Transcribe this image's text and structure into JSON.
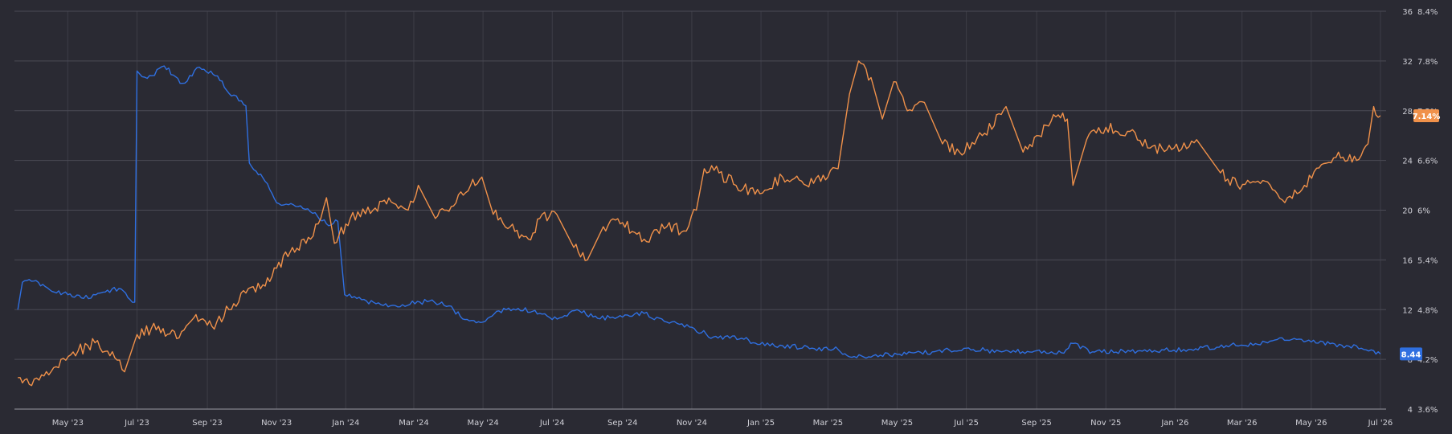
{
  "chart_data": {
    "type": "line",
    "grid": true,
    "legend": "none",
    "x_range": [
      "2023-03-15",
      "2026-07-06"
    ],
    "x_ticks": [
      {
        "label": "May '23",
        "date": "2023-05-01"
      },
      {
        "label": "Jul '23",
        "date": "2023-07-01"
      },
      {
        "label": "Sep '23",
        "date": "2023-09-01"
      },
      {
        "label": "Nov '23",
        "date": "2023-11-01"
      },
      {
        "label": "Jan '24",
        "date": "2024-01-01"
      },
      {
        "label": "Mar '24",
        "date": "2024-03-01"
      },
      {
        "label": "May '24",
        "date": "2024-05-01"
      },
      {
        "label": "Jul '24",
        "date": "2024-07-01"
      },
      {
        "label": "Sep '24",
        "date": "2024-09-01"
      },
      {
        "label": "Nov '24",
        "date": "2024-11-01"
      },
      {
        "label": "Jan '25",
        "date": "2025-01-01"
      },
      {
        "label": "Mar '25",
        "date": "2025-03-01"
      },
      {
        "label": "May '25",
        "date": "2025-05-01"
      },
      {
        "label": "Jul '25",
        "date": "2025-07-01"
      },
      {
        "label": "Sep '25",
        "date": "2025-09-01"
      },
      {
        "label": "Nov '25",
        "date": "2025-11-01"
      },
      {
        "label": "Jan '26",
        "date": "2026-01-01"
      },
      {
        "label": "Mar '26",
        "date": "2026-03-01"
      },
      {
        "label": "May '26",
        "date": "2026-05-01"
      },
      {
        "label": "Jul '26",
        "date": "2026-07-01"
      }
    ],
    "y_left": {
      "range": [
        4,
        36
      ],
      "ticks": [
        {
          "value": 4,
          "label": "4"
        },
        {
          "value": 8,
          "label": "8"
        },
        {
          "value": 12,
          "label": "12"
        },
        {
          "value": 16,
          "label": "16"
        },
        {
          "value": 20,
          "label": "20"
        },
        {
          "value": 24,
          "label": "24"
        },
        {
          "value": 28,
          "label": "28"
        },
        {
          "value": 32,
          "label": "32"
        },
        {
          "value": 36,
          "label": "36"
        }
      ]
    },
    "y_right": {
      "range": [
        3.6,
        8.4
      ],
      "ticks": [
        {
          "value": 3.6,
          "label": "3.6%"
        },
        {
          "value": 4.2,
          "label": "4.2%"
        },
        {
          "value": 4.8,
          "label": "4.8%"
        },
        {
          "value": 5.4,
          "label": "5.4%"
        },
        {
          "value": 6.0,
          "label": "6%"
        },
        {
          "value": 6.6,
          "label": "6.6%"
        },
        {
          "value": 7.2,
          "label": "7.2%"
        },
        {
          "value": 7.8,
          "label": "7.8%"
        },
        {
          "value": 8.4,
          "label": "8.4%"
        }
      ]
    },
    "series": [
      {
        "axis": "left",
        "color": "#2f6fe0",
        "last_label": "8.44",
        "points": [
          [
            "2023-03-18",
            12.0
          ],
          [
            "2023-03-22",
            14.2
          ],
          [
            "2023-04-01",
            14.3
          ],
          [
            "2023-04-15",
            13.6
          ],
          [
            "2023-05-01",
            13.2
          ],
          [
            "2023-05-15",
            12.9
          ],
          [
            "2023-06-01",
            13.4
          ],
          [
            "2023-06-15",
            13.7
          ],
          [
            "2023-06-25",
            12.8
          ],
          [
            "2023-06-29",
            12.6
          ],
          [
            "2023-07-01",
            31.2
          ],
          [
            "2023-07-10",
            30.6
          ],
          [
            "2023-07-25",
            31.6
          ],
          [
            "2023-08-10",
            30.2
          ],
          [
            "2023-08-25",
            31.5
          ],
          [
            "2023-09-10",
            30.8
          ],
          [
            "2023-09-20",
            29.4
          ],
          [
            "2023-10-01",
            28.8
          ],
          [
            "2023-10-05",
            28.4
          ],
          [
            "2023-10-08",
            23.8
          ],
          [
            "2023-10-20",
            22.6
          ],
          [
            "2023-11-01",
            20.6
          ],
          [
            "2023-11-20",
            20.3
          ],
          [
            "2023-12-05",
            19.8
          ],
          [
            "2023-12-15",
            18.9
          ],
          [
            "2023-12-25",
            19.1
          ],
          [
            "2023-12-31",
            13.2
          ],
          [
            "2024-01-15",
            12.8
          ],
          [
            "2024-02-01",
            12.4
          ],
          [
            "2024-02-20",
            12.4
          ],
          [
            "2024-03-15",
            12.7
          ],
          [
            "2024-04-01",
            12.3
          ],
          [
            "2024-04-15",
            11.2
          ],
          [
            "2024-05-01",
            11.0
          ],
          [
            "2024-05-15",
            11.9
          ],
          [
            "2024-06-01",
            12.1
          ],
          [
            "2024-06-20",
            11.7
          ],
          [
            "2024-07-01",
            11.2
          ],
          [
            "2024-07-25",
            11.9
          ],
          [
            "2024-08-10",
            11.3
          ],
          [
            "2024-09-01",
            11.4
          ],
          [
            "2024-09-20",
            11.7
          ],
          [
            "2024-10-10",
            11.0
          ],
          [
            "2024-10-30",
            10.6
          ],
          [
            "2024-11-20",
            9.8
          ],
          [
            "2024-12-15",
            9.7
          ],
          [
            "2024-12-31",
            9.2
          ],
          [
            "2025-01-20",
            9.1
          ],
          [
            "2025-02-15",
            8.9
          ],
          [
            "2025-03-10",
            8.8
          ],
          [
            "2025-03-20",
            8.2
          ],
          [
            "2025-04-10",
            8.3
          ],
          [
            "2025-05-01",
            8.4
          ],
          [
            "2025-06-01",
            8.6
          ],
          [
            "2025-07-01",
            8.9
          ],
          [
            "2025-08-01",
            8.6
          ],
          [
            "2025-09-01",
            8.7
          ],
          [
            "2025-09-25",
            8.5
          ],
          [
            "2025-10-01",
            9.3
          ],
          [
            "2025-10-20",
            8.6
          ],
          [
            "2025-12-01",
            8.7
          ],
          [
            "2026-01-15",
            8.8
          ],
          [
            "2026-02-15",
            9.1
          ],
          [
            "2026-03-15",
            9.2
          ],
          [
            "2026-04-01",
            9.6
          ],
          [
            "2026-05-01",
            9.4
          ],
          [
            "2026-06-01",
            9.1
          ],
          [
            "2026-06-25",
            8.7
          ],
          [
            "2026-07-01",
            8.44
          ]
        ]
      },
      {
        "axis": "right",
        "color": "#f0914a",
        "last_label": "7.14%",
        "points": [
          [
            "2023-03-18",
            3.98
          ],
          [
            "2023-03-28",
            3.9
          ],
          [
            "2023-04-10",
            4.0
          ],
          [
            "2023-04-25",
            4.2
          ],
          [
            "2023-05-10",
            4.3
          ],
          [
            "2023-05-25",
            4.4
          ],
          [
            "2023-06-05",
            4.3
          ],
          [
            "2023-06-20",
            4.05
          ],
          [
            "2023-07-01",
            4.5
          ],
          [
            "2023-07-20",
            4.6
          ],
          [
            "2023-08-05",
            4.45
          ],
          [
            "2023-08-20",
            4.7
          ],
          [
            "2023-09-05",
            4.6
          ],
          [
            "2023-09-20",
            4.8
          ],
          [
            "2023-10-05",
            5.0
          ],
          [
            "2023-10-20",
            5.1
          ],
          [
            "2023-11-01",
            5.3
          ],
          [
            "2023-11-15",
            5.55
          ],
          [
            "2023-12-01",
            5.65
          ],
          [
            "2023-12-10",
            5.9
          ],
          [
            "2023-12-15",
            6.15
          ],
          [
            "2023-12-22",
            5.6
          ],
          [
            "2024-01-05",
            5.9
          ],
          [
            "2024-01-25",
            6.0
          ],
          [
            "2024-02-10",
            6.1
          ],
          [
            "2024-02-25",
            6.0
          ],
          [
            "2024-03-05",
            6.3
          ],
          [
            "2024-03-20",
            5.9
          ],
          [
            "2024-04-05",
            6.05
          ],
          [
            "2024-04-20",
            6.3
          ],
          [
            "2024-04-30",
            6.4
          ],
          [
            "2024-05-10",
            5.95
          ],
          [
            "2024-05-25",
            5.8
          ],
          [
            "2024-06-10",
            5.65
          ],
          [
            "2024-06-20",
            5.9
          ],
          [
            "2024-07-05",
            5.95
          ],
          [
            "2024-07-20",
            5.55
          ],
          [
            "2024-08-01",
            5.4
          ],
          [
            "2024-08-15",
            5.8
          ],
          [
            "2024-09-01",
            5.85
          ],
          [
            "2024-09-20",
            5.65
          ],
          [
            "2024-10-10",
            5.8
          ],
          [
            "2024-10-25",
            5.75
          ],
          [
            "2024-11-05",
            6.0
          ],
          [
            "2024-11-12",
            6.5
          ],
          [
            "2024-11-25",
            6.45
          ],
          [
            "2024-12-10",
            6.3
          ],
          [
            "2024-12-31",
            6.2
          ],
          [
            "2025-01-20",
            6.4
          ],
          [
            "2025-02-10",
            6.3
          ],
          [
            "2025-03-01",
            6.4
          ],
          [
            "2025-03-10",
            6.5
          ],
          [
            "2025-03-20",
            7.4
          ],
          [
            "2025-03-28",
            7.8
          ],
          [
            "2025-04-08",
            7.6
          ],
          [
            "2025-04-18",
            7.1
          ],
          [
            "2025-04-28",
            7.55
          ],
          [
            "2025-05-10",
            7.2
          ],
          [
            "2025-05-25",
            7.3
          ],
          [
            "2025-06-10",
            6.8
          ],
          [
            "2025-06-25",
            6.7
          ],
          [
            "2025-07-15",
            6.9
          ],
          [
            "2025-08-05",
            7.25
          ],
          [
            "2025-08-20",
            6.7
          ],
          [
            "2025-09-01",
            6.9
          ],
          [
            "2025-09-20",
            7.15
          ],
          [
            "2025-09-28",
            7.1
          ],
          [
            "2025-10-03",
            6.3
          ],
          [
            "2025-10-15",
            6.85
          ],
          [
            "2025-11-01",
            7.0
          ],
          [
            "2025-11-20",
            6.95
          ],
          [
            "2025-12-10",
            6.75
          ],
          [
            "2025-12-31",
            6.75
          ],
          [
            "2026-01-20",
            6.85
          ],
          [
            "2026-02-10",
            6.45
          ],
          [
            "2026-02-25",
            6.3
          ],
          [
            "2026-03-15",
            6.35
          ],
          [
            "2026-04-01",
            6.2
          ],
          [
            "2026-04-10",
            6.15
          ],
          [
            "2026-04-25",
            6.3
          ],
          [
            "2026-05-10",
            6.55
          ],
          [
            "2026-05-25",
            6.7
          ],
          [
            "2026-06-10",
            6.6
          ],
          [
            "2026-06-20",
            6.8
          ],
          [
            "2026-06-25",
            7.25
          ],
          [
            "2026-07-01",
            7.14
          ]
        ]
      }
    ]
  }
}
